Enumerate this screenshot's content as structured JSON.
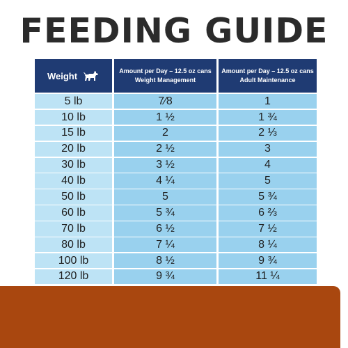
{
  "title": "FEEDING GUIDE",
  "header": {
    "weight": "Weight",
    "col2_line1": "Amount per Day – 12.5 oz cans",
    "col2_line2": "Weight Management",
    "col3_line1": "Amount per Day – 12.5 oz cans",
    "col3_line2": "Adult Maintenance",
    "icon": "dog-icon"
  },
  "rows": [
    {
      "weight": "5 lb",
      "wm": "7⁄8",
      "am": "1"
    },
    {
      "weight": "10 lb",
      "wm": "1 ½",
      "am": "1 ¾"
    },
    {
      "weight": "15 lb",
      "wm": "2",
      "am": "2 ⅓"
    },
    {
      "weight": "20 lb",
      "wm": "2 ½",
      "am": "3"
    },
    {
      "weight": "30 lb",
      "wm": "3 ½",
      "am": "4"
    },
    {
      "weight": "40 lb",
      "wm": "4 ¼",
      "am": "5"
    },
    {
      "weight": "50 lb",
      "wm": "5",
      "am": "5 ¾"
    },
    {
      "weight": "60 lb",
      "wm": "5 ¾",
      "am": "6 ⅔"
    },
    {
      "weight": "70 lb",
      "wm": "6 ½",
      "am": "7 ½"
    },
    {
      "weight": "80 lb",
      "wm": "7 ¼",
      "am": "8 ¼"
    },
    {
      "weight": "100 lb",
      "wm": "8 ½",
      "am": "9 ¾"
    },
    {
      "weight": "120 lb",
      "wm": "9 ¾",
      "am": "11 ¼"
    }
  ],
  "colors": {
    "header_bg": "#1f3b73",
    "weight_col_bg": "#bde3f5",
    "amount_col_bg": "#99d1ee",
    "bottom_bar": "#a9470f"
  }
}
